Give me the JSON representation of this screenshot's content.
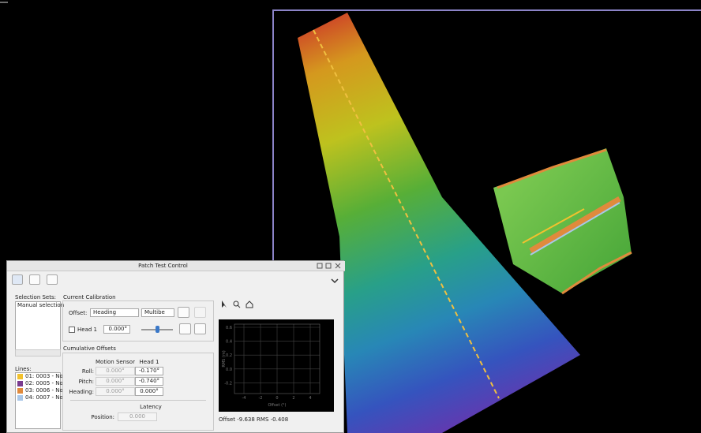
{
  "dialog": {
    "title": "Patch Test Control"
  },
  "selection_sets": {
    "label": "Selection Sets:",
    "items": [
      "Manual selection"
    ]
  },
  "lines": {
    "label": "Lines:",
    "items": [
      {
        "label": "01: 0003 - No",
        "color": "#f2c12e"
      },
      {
        "label": "02: 0005 - No",
        "color": "#7a3b8f"
      },
      {
        "label": "03: 0006 - No",
        "color": "#e08a3c"
      },
      {
        "label": "04: 0007 - No",
        "color": "#a9c7e8"
      }
    ]
  },
  "current_calibration": {
    "title": "Current Calibration",
    "offset_label": "Offset:",
    "offset_value": "Heading",
    "source_value": "Multibe",
    "head_label": "Head 1",
    "head_value": "0.000°"
  },
  "cumulative_offsets": {
    "title": "Cumulative Offsets",
    "columns": [
      "Motion Sensor",
      "Head 1"
    ],
    "rows": [
      {
        "label": "Roll:",
        "values": [
          "0.000°",
          "-0.170°"
        ]
      },
      {
        "label": "Pitch:",
        "values": [
          "0.000°",
          "-0.740°"
        ]
      },
      {
        "label": "Heading:",
        "values": [
          "0.000°",
          "0.000°"
        ]
      }
    ]
  },
  "latency": {
    "title": "Latency",
    "position_label": "Position:",
    "position_value": "0.000"
  },
  "plot": {
    "y_label": "RMS (m)",
    "x_label": "Offset (°)",
    "yticks": [
      "0.6",
      "0.4",
      "0.2",
      "0.0",
      "-0.2"
    ],
    "xticks": [
      "-4",
      "-2",
      "0",
      "2",
      "4"
    ],
    "status": "Offset -9.638  RMS -0.408"
  }
}
